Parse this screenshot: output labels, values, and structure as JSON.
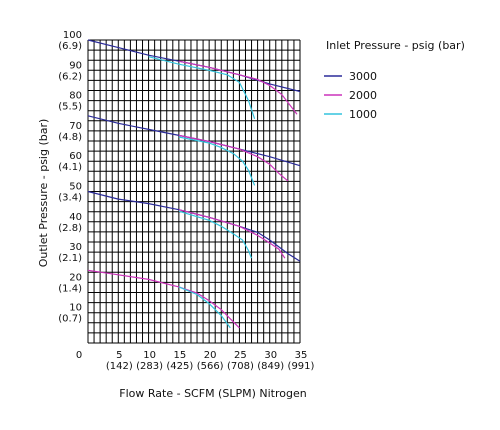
{
  "chart_data": {
    "type": "line",
    "xlabel": "Flow Rate - SCFM (SLPM) Nitrogen",
    "ylabel": "Outlet Pressure - psig (bar)",
    "legend_title": "Inlet Pressure - psig (bar)",
    "legend_position": "top-right",
    "grid": true,
    "xlim": [
      0,
      35
    ],
    "ylim": [
      0,
      100
    ],
    "x_ticks": [
      {
        "value": 0,
        "line1": "0",
        "line2": ""
      },
      {
        "value": 5,
        "line1": "5",
        "line2": "(142)"
      },
      {
        "value": 10,
        "line1": "10",
        "line2": "(283)"
      },
      {
        "value": 15,
        "line1": "15",
        "line2": "(425)"
      },
      {
        "value": 20,
        "line1": "20",
        "line2": "(566)"
      },
      {
        "value": 25,
        "line1": "25",
        "line2": "(708)"
      },
      {
        "value": 30,
        "line1": "30",
        "line2": "(849)"
      },
      {
        "value": 35,
        "line1": "35",
        "line2": "(991)"
      }
    ],
    "y_ticks": [
      {
        "value": 100,
        "line1": "100",
        "line2": "(6.9)"
      },
      {
        "value": 90,
        "line1": "90",
        "line2": "(6.2)"
      },
      {
        "value": 80,
        "line1": "80",
        "line2": "(5.5)"
      },
      {
        "value": 70,
        "line1": "70",
        "line2": "(4.8)"
      },
      {
        "value": 60,
        "line1": "60",
        "line2": "(4.1)"
      },
      {
        "value": 50,
        "line1": "50",
        "line2": "(3.4)"
      },
      {
        "value": 40,
        "line1": "40",
        "line2": "(2.8)"
      },
      {
        "value": 30,
        "line1": "30",
        "line2": "(2.1)"
      },
      {
        "value": 20,
        "line1": "20",
        "line2": "(1.4)"
      },
      {
        "value": 10,
        "line1": "10",
        "line2": "(0.7)"
      }
    ],
    "series": [
      {
        "name": "3000",
        "color": "#2b2b9a",
        "curves": [
          [
            [
              0,
              100
            ],
            [
              5,
              97.5
            ],
            [
              10,
              95
            ],
            [
              15,
              93
            ],
            [
              20,
              91
            ],
            [
              25,
              88.5
            ],
            [
              30,
              85.5
            ],
            [
              35,
              83
            ]
          ],
          [
            [
              0,
              75
            ],
            [
              5,
              72.5
            ],
            [
              10,
              70.5
            ],
            [
              15,
              68.5
            ],
            [
              20,
              66.5
            ],
            [
              25,
              64
            ],
            [
              30,
              61.5
            ],
            [
              35,
              58.5
            ]
          ],
          [
            [
              0,
              50
            ],
            [
              5,
              47.5
            ],
            [
              10,
              46
            ],
            [
              15,
              44
            ],
            [
              20,
              41.5
            ],
            [
              25,
              38.5
            ],
            [
              28,
              36.5
            ],
            [
              30,
              34
            ],
            [
              33,
              29.5
            ],
            [
              35,
              27
            ]
          ]
        ]
      },
      {
        "name": "2000",
        "color": "#cc33bb",
        "curves": [
          [
            [
              15,
              93
            ],
            [
              20,
              91
            ],
            [
              25,
              88.5
            ],
            [
              28,
              87
            ],
            [
              30,
              85
            ],
            [
              32,
              82
            ],
            [
              34.5,
              75.5
            ]
          ],
          [
            [
              15,
              68.5
            ],
            [
              20,
              66.5
            ],
            [
              25,
              64
            ],
            [
              28,
              61.5
            ],
            [
              30,
              59
            ],
            [
              31.5,
              56
            ],
            [
              33,
              53.5
            ]
          ],
          [
            [
              15,
              44
            ],
            [
              20,
              41.5
            ],
            [
              25,
              38.5
            ],
            [
              28,
              35.5
            ],
            [
              30,
              33
            ],
            [
              31.5,
              31
            ],
            [
              32.5,
              28
            ]
          ],
          [
            [
              0,
              24
            ],
            [
              5,
              22.5
            ],
            [
              10,
              21
            ],
            [
              15,
              18.5
            ],
            [
              18,
              16.5
            ],
            [
              20,
              14
            ],
            [
              22,
              11
            ],
            [
              23.5,
              8
            ],
            [
              25,
              5
            ]
          ]
        ]
      },
      {
        "name": "1000",
        "color": "#33c4dd",
        "curves": [
          [
            [
              10,
              94.5
            ],
            [
              15,
              92
            ],
            [
              20,
              90
            ],
            [
              23,
              88.5
            ],
            [
              25,
              86
            ],
            [
              26.5,
              80
            ],
            [
              27.5,
              74
            ]
          ],
          [
            [
              15,
              68
            ],
            [
              20,
              66
            ],
            [
              22,
              64.5
            ],
            [
              24,
              62.5
            ],
            [
              25.5,
              60
            ],
            [
              26.5,
              57
            ],
            [
              27.5,
              52
            ]
          ],
          [
            [
              15,
              43.5
            ],
            [
              20,
              40.5
            ],
            [
              22,
              38.5
            ],
            [
              24,
              36
            ],
            [
              25.5,
              34
            ],
            [
              26.5,
              30.5
            ],
            [
              27,
              28
            ]
          ],
          [
            [
              15,
              18.5
            ],
            [
              18,
              16
            ],
            [
              20,
              13
            ],
            [
              22,
              9
            ],
            [
              23.5,
              5
            ]
          ]
        ]
      }
    ]
  }
}
